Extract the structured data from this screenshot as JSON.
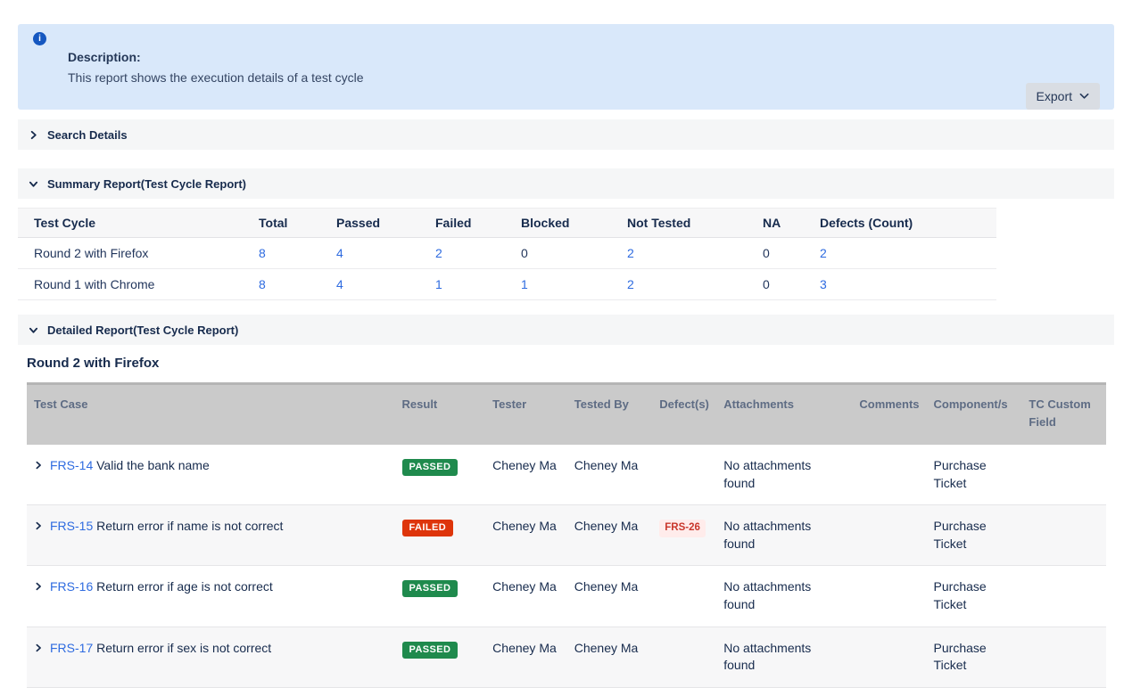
{
  "banner": {
    "title": "Description:",
    "text": "This report shows the execution details of a test cycle",
    "export_label": "Export"
  },
  "sections": {
    "search_label": "Search Details",
    "summary_label": "Summary Report(Test Cycle Report)",
    "detailed_label": "Detailed Report(Test Cycle Report)"
  },
  "summary_table": {
    "headers": [
      "Test Cycle",
      "Total",
      "Passed",
      "Failed",
      "Blocked",
      "Not Tested",
      "NA",
      "Defects (Count)"
    ],
    "rows": [
      {
        "cycle": "Round 2 with Firefox",
        "cells": [
          {
            "text": "8",
            "link": true
          },
          {
            "text": "4",
            "link": true
          },
          {
            "text": "2",
            "link": true
          },
          {
            "text": "0",
            "link": false
          },
          {
            "text": "2",
            "link": true
          },
          {
            "text": "0",
            "link": false
          },
          {
            "text": "2",
            "link": true
          }
        ]
      },
      {
        "cycle": "Round 1 with Chrome",
        "cells": [
          {
            "text": "8",
            "link": true
          },
          {
            "text": "4",
            "link": true
          },
          {
            "text": "1",
            "link": true
          },
          {
            "text": "1",
            "link": true
          },
          {
            "text": "2",
            "link": true
          },
          {
            "text": "0",
            "link": false
          },
          {
            "text": "3",
            "link": true
          }
        ]
      }
    ]
  },
  "detailed": {
    "cycle_heading": "Round 2 with Firefox",
    "headers": [
      "Test Case",
      "Result",
      "Tester",
      "Tested By",
      "Defect(s)",
      "Attachments",
      "Comments",
      "Component/s",
      "TC Custom Field"
    ],
    "rows": [
      {
        "key": "FRS-14",
        "summary": "Valid the bank name",
        "result": "PASSED",
        "tester": "Cheney Ma",
        "tested_by": "Cheney Ma",
        "defects": [],
        "attachments": "No attachments found",
        "comments": "",
        "components": "Purchase Ticket",
        "tc_custom": ""
      },
      {
        "key": "FRS-15",
        "summary": "Return error if name is not correct",
        "result": "FAILED",
        "tester": "Cheney Ma",
        "tested_by": "Cheney Ma",
        "defects": [
          "FRS-26"
        ],
        "attachments": "No attachments found",
        "comments": "",
        "components": "Purchase Ticket",
        "tc_custom": ""
      },
      {
        "key": "FRS-16",
        "summary": "Return error if age is not correct",
        "result": "PASSED",
        "tester": "Cheney Ma",
        "tested_by": "Cheney Ma",
        "defects": [],
        "attachments": "No attachments found",
        "comments": "",
        "components": "Purchase Ticket",
        "tc_custom": ""
      },
      {
        "key": "FRS-17",
        "summary": "Return error if sex is not correct",
        "result": "PASSED",
        "tester": "Cheney Ma",
        "tested_by": "Cheney Ma",
        "defects": [],
        "attachments": "No attachments found",
        "comments": "",
        "components": "Purchase Ticket",
        "tc_custom": ""
      }
    ]
  },
  "colors": {
    "passed_badge": "#1f8a4d",
    "failed_badge": "#de350b",
    "link_blue": "#2e6be0",
    "defect_text": "#c9372c",
    "defect_bg": "#ffeceb",
    "banner_bg": "#d9e8fa",
    "info_icon_blue": "#1557c0"
  }
}
